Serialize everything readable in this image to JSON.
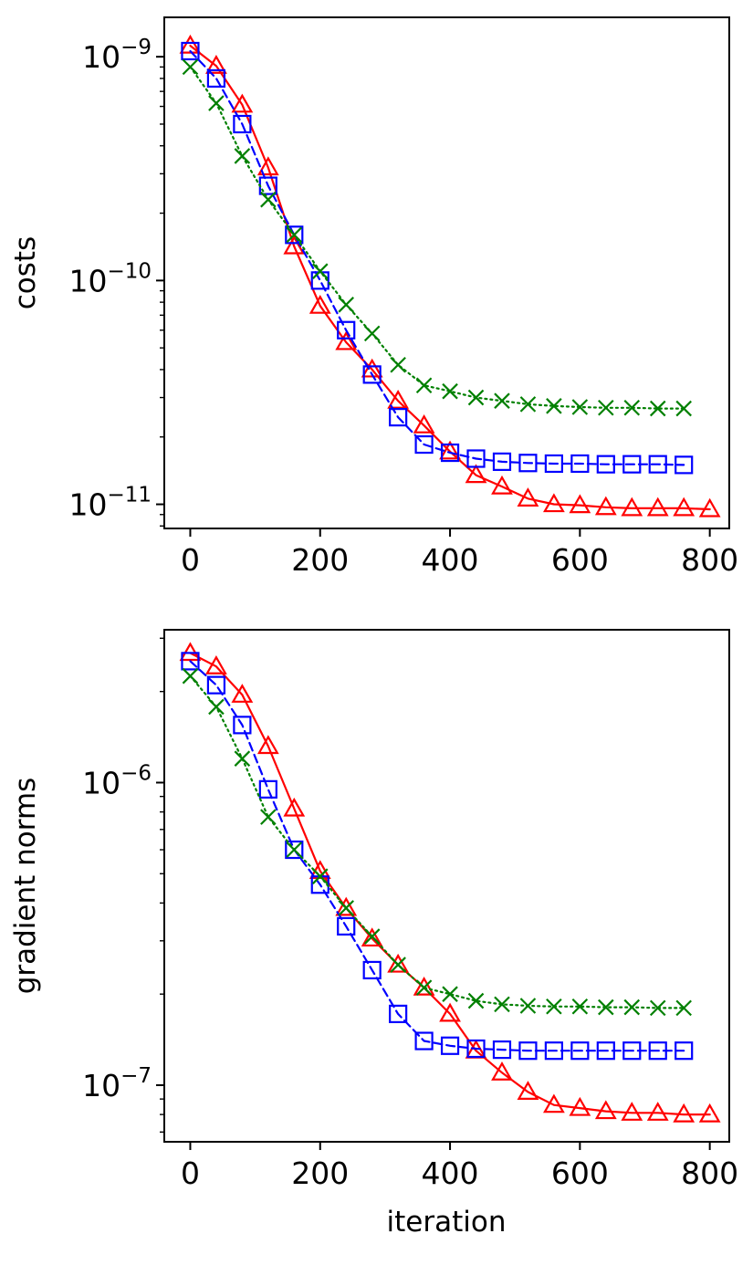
{
  "figure": {
    "xlabel": "iteration"
  },
  "chart_data": [
    {
      "type": "line",
      "ylabel": "costs",
      "yscale": "log",
      "ylim": [
        7.8e-12,
        1.5e-09
      ],
      "xlim": [
        -40,
        830
      ],
      "xticks": [
        0,
        200,
        400,
        600,
        800
      ],
      "xtick_labels": [
        "0",
        "200",
        "400",
        "600",
        "800"
      ],
      "yticks": [
        {
          "value": 1e-09,
          "base": "10",
          "exp": "−9"
        },
        {
          "value": 1e-10,
          "base": "10",
          "exp": "−10"
        },
        {
          "value": 1e-11,
          "base": "10",
          "exp": "−11"
        }
      ],
      "series": [
        {
          "name": "series-red",
          "color": "#ff0000",
          "linestyle": "solid",
          "marker": "triangle",
          "x": [
            0,
            40,
            80,
            120,
            160,
            200,
            240,
            280,
            320,
            360,
            400,
            440,
            480,
            520,
            560,
            600,
            640,
            680,
            720,
            760,
            800
          ],
          "y": [
            1.12e-09,
            9.1e-10,
            6.1e-10,
            3.2e-10,
            1.42e-10,
            7.7e-11,
            5.3e-11,
            4e-11,
            2.9e-11,
            2.25e-11,
            1.72e-11,
            1.35e-11,
            1.2e-11,
            1.06e-11,
            1e-11,
            9.9e-12,
            9.7e-12,
            9.6e-12,
            9.6e-12,
            9.6e-12,
            9.5e-12
          ]
        },
        {
          "name": "series-blue",
          "color": "#0000ff",
          "linestyle": "dashed",
          "marker": "square",
          "x": [
            0,
            40,
            80,
            120,
            160,
            200,
            240,
            280,
            320,
            360,
            400,
            440,
            480,
            520,
            560,
            600,
            640,
            680,
            720,
            760
          ],
          "y": [
            1.06e-09,
            8e-10,
            5e-10,
            2.65e-10,
            1.6e-10,
            1e-10,
            6e-11,
            3.8e-11,
            2.45e-11,
            1.85e-11,
            1.7e-11,
            1.6e-11,
            1.55e-11,
            1.53e-11,
            1.52e-11,
            1.52e-11,
            1.51e-11,
            1.51e-11,
            1.51e-11,
            1.5e-11
          ]
        },
        {
          "name": "series-green",
          "color": "#008000",
          "linestyle": "dotted",
          "marker": "x",
          "x": [
            0,
            40,
            80,
            120,
            160,
            200,
            240,
            280,
            320,
            360,
            400,
            440,
            480,
            520,
            560,
            600,
            640,
            680,
            720,
            760
          ],
          "y": [
            9e-10,
            6.2e-10,
            3.6e-10,
            2.3e-10,
            1.6e-10,
            1.1e-10,
            7.8e-11,
            5.8e-11,
            4.2e-11,
            3.4e-11,
            3.2e-11,
            3e-11,
            2.9e-11,
            2.8e-11,
            2.75e-11,
            2.72e-11,
            2.7e-11,
            2.7e-11,
            2.68e-11,
            2.68e-11
          ]
        }
      ]
    },
    {
      "type": "line",
      "ylabel": "gradient norms",
      "yscale": "log",
      "ylim": [
        6.5e-08,
        3.2e-06
      ],
      "xlim": [
        -40,
        830
      ],
      "xticks": [
        0,
        200,
        400,
        600,
        800
      ],
      "xtick_labels": [
        "0",
        "200",
        "400",
        "600",
        "800"
      ],
      "yticks": [
        {
          "value": 1e-06,
          "base": "10",
          "exp": "−6"
        },
        {
          "value": 1e-07,
          "base": "10",
          "exp": "−7"
        }
      ],
      "series": [
        {
          "name": "series-red",
          "color": "#ff0000",
          "linestyle": "solid",
          "marker": "triangle",
          "x": [
            0,
            40,
            80,
            120,
            160,
            200,
            240,
            280,
            320,
            360,
            400,
            440,
            480,
            520,
            560,
            600,
            640,
            680,
            720,
            760,
            800
          ],
          "y": [
            2.68e-06,
            2.42e-06,
            1.95e-06,
            1.32e-06,
            8.2e-07,
            5.1e-07,
            3.85e-07,
            3.05e-07,
            2.5e-07,
            2.1e-07,
            1.72e-07,
            1.3e-07,
            1.1e-07,
            9.5e-08,
            8.6e-08,
            8.4e-08,
            8.2e-08,
            8.1e-08,
            8.1e-08,
            8e-08,
            8e-08
          ]
        },
        {
          "name": "series-blue",
          "color": "#0000ff",
          "linestyle": "dashed",
          "marker": "square",
          "x": [
            0,
            40,
            80,
            120,
            160,
            200,
            240,
            280,
            320,
            360,
            400,
            440,
            480,
            520,
            560,
            600,
            640,
            680,
            720,
            760
          ],
          "y": [
            2.52e-06,
            2.1e-06,
            1.55e-06,
            9.5e-07,
            6e-07,
            4.6e-07,
            3.35e-07,
            2.4e-07,
            1.72e-07,
            1.4e-07,
            1.35e-07,
            1.32e-07,
            1.31e-07,
            1.3e-07,
            1.3e-07,
            1.3e-07,
            1.3e-07,
            1.3e-07,
            1.3e-07,
            1.3e-07
          ]
        },
        {
          "name": "series-green",
          "color": "#008000",
          "linestyle": "dotted",
          "marker": "x",
          "x": [
            0,
            40,
            80,
            120,
            160,
            200,
            240,
            280,
            320,
            360,
            400,
            440,
            480,
            520,
            560,
            600,
            640,
            680,
            720,
            760
          ],
          "y": [
            2.25e-06,
            1.78e-06,
            1.2e-06,
            7.7e-07,
            6e-07,
            4.9e-07,
            3.85e-07,
            3.1e-07,
            2.5e-07,
            2.1e-07,
            2e-07,
            1.9e-07,
            1.85e-07,
            1.83e-07,
            1.82e-07,
            1.82e-07,
            1.81e-07,
            1.81e-07,
            1.8e-07,
            1.8e-07
          ]
        }
      ]
    }
  ]
}
